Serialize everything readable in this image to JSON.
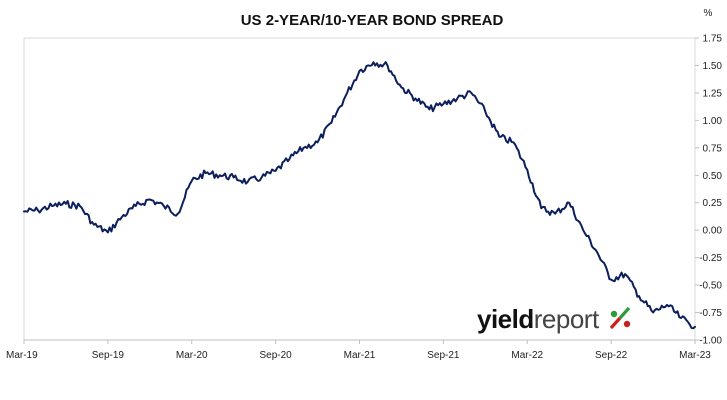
{
  "chart_data": {
    "type": "line",
    "title": "US 2-YEAR/10-YEAR BOND SPREAD",
    "y_unit_label": "%",
    "xlabel": "",
    "ylabel": "",
    "x_ticks": [
      "Mar-19",
      "Sep-19",
      "Mar-20",
      "Sep-20",
      "Mar-21",
      "Sep-21",
      "Mar-22",
      "Sep-22",
      "Mar-23"
    ],
    "y_ticks": [
      "1.75",
      "1.50",
      "1.25",
      "1.00",
      "0.75",
      "0.50",
      "0.25",
      "0.00",
      "-0.25",
      "-0.50",
      "-0.75",
      "-1.00"
    ],
    "ylim": [
      -1.0,
      1.75
    ],
    "xlim": [
      "2019-03",
      "2023-03"
    ],
    "grid": false,
    "legend": "none",
    "line_color": "#0c1f5c",
    "series": [
      {
        "x": [
          "2019-03",
          "2019-04",
          "2019-05",
          "2019-06",
          "2019-07",
          "2019-08",
          "2019-09",
          "2019-10",
          "2019-11",
          "2019-12",
          "2020-01",
          "2020-02",
          "2020-03",
          "2020-04",
          "2020-05",
          "2020-06",
          "2020-07",
          "2020-08",
          "2020-09",
          "2020-10",
          "2020-11",
          "2020-12",
          "2021-01",
          "2021-02",
          "2021-03",
          "2021-04",
          "2021-05",
          "2021-06",
          "2021-07",
          "2021-08",
          "2021-09",
          "2021-10",
          "2021-11",
          "2021-12",
          "2022-01",
          "2022-02",
          "2022-03",
          "2022-04",
          "2022-05",
          "2022-06",
          "2022-07",
          "2022-08",
          "2022-09",
          "2022-10",
          "2022-11",
          "2022-12",
          "2023-01",
          "2023-02",
          "2023-03"
        ],
        "values": [
          0.17,
          0.18,
          0.22,
          0.24,
          0.22,
          0.05,
          -0.02,
          0.12,
          0.22,
          0.28,
          0.22,
          0.15,
          0.45,
          0.52,
          0.5,
          0.48,
          0.44,
          0.48,
          0.54,
          0.65,
          0.75,
          0.8,
          0.98,
          1.22,
          1.45,
          1.53,
          1.5,
          1.3,
          1.2,
          1.1,
          1.15,
          1.2,
          1.25,
          1.08,
          0.85,
          0.8,
          0.55,
          0.2,
          0.15,
          0.25,
          0.0,
          -0.2,
          -0.45,
          -0.4,
          -0.6,
          -0.75,
          -0.68,
          -0.8,
          -0.88
        ]
      }
    ],
    "logo": {
      "text_a": "yield",
      "text_b": "report",
      "text_c": "%",
      "color_a": "#111111",
      "color_b": "#444444",
      "color_c_top": "#2a9d3a",
      "color_c_bottom": "#c8201f"
    }
  }
}
